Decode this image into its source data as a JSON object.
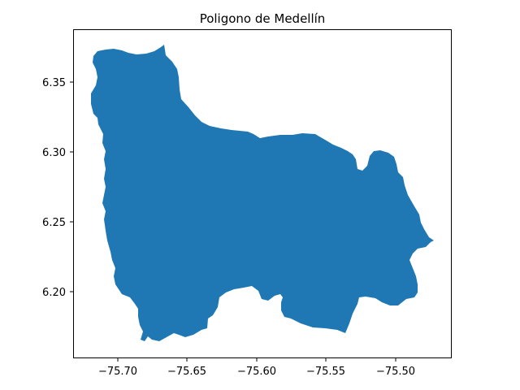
{
  "title": "Poligono de Medellín",
  "x_ticks": [
    "−75.70",
    "−75.65",
    "−75.60",
    "−75.55",
    "−75.50"
  ],
  "y_ticks": [
    "6.20",
    "6.25",
    "6.30",
    "6.35"
  ],
  "colors": {
    "fill": "#1f77b4",
    "axis": "#000000"
  }
}
